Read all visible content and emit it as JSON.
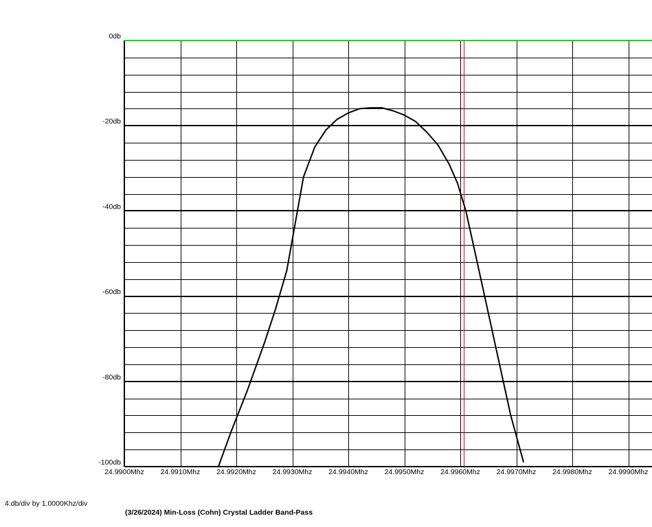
{
  "chart_data": {
    "type": "line",
    "title": "(3/26/2024) Min-Loss (Cohn) Crystal Ladder Band-Pass",
    "scale_note": "4.db/div by 1.0000Khz/div",
    "xlabel": "",
    "ylabel": "",
    "xlim": [
      24.99,
      24.9994
    ],
    "ylim": [
      -100,
      0
    ],
    "x_ticks": [
      24.99,
      24.991,
      24.992,
      24.993,
      24.994,
      24.995,
      24.996,
      24.997,
      24.998,
      24.999
    ],
    "x_tick_labels": [
      "24.9900Mhz",
      "24.9910Mhz",
      "24.9920Mhz",
      "24.9930Mhz",
      "24.9940Mhz",
      "24.9950Mhz",
      "24.9960Mhz",
      "24.9970Mhz",
      "24.9980Mhz",
      "24.9990Mhz"
    ],
    "y_ticks": [
      0,
      -20,
      -40,
      -60,
      -80,
      -100
    ],
    "y_tick_labels": [
      "0db",
      "-20db",
      "-40db",
      "-60db",
      "-80db",
      "-100db"
    ],
    "y_minor_step": 4,
    "grid": true,
    "marker_x": 24.99606,
    "colors": {
      "trace": "#000000",
      "zero_line": "#00e000",
      "marker": "#e00000",
      "grid": "#000000"
    },
    "series": [
      {
        "x": [
          24.99168,
          24.9919,
          24.9922,
          24.9925,
          24.9927,
          24.9929,
          24.99305,
          24.9932,
          24.9934,
          24.9936,
          24.9938,
          24.994,
          24.9942,
          24.9944,
          24.9946,
          24.9948,
          24.995,
          24.9952,
          24.9954,
          24.9956,
          24.9958,
          24.99595,
          24.9961,
          24.9963,
          24.9965,
          24.9967,
          24.9969,
          24.99713
        ],
        "y": [
          -100,
          -92,
          -82,
          -71,
          -63,
          -54,
          -43,
          -32,
          -25,
          -21,
          -18.5,
          -17,
          -16,
          -15.8,
          -15.8,
          -16.5,
          -17.5,
          -19,
          -21.5,
          -24.5,
          -29,
          -33.5,
          -40,
          -52,
          -64,
          -76,
          -88,
          -99
        ]
      }
    ]
  }
}
